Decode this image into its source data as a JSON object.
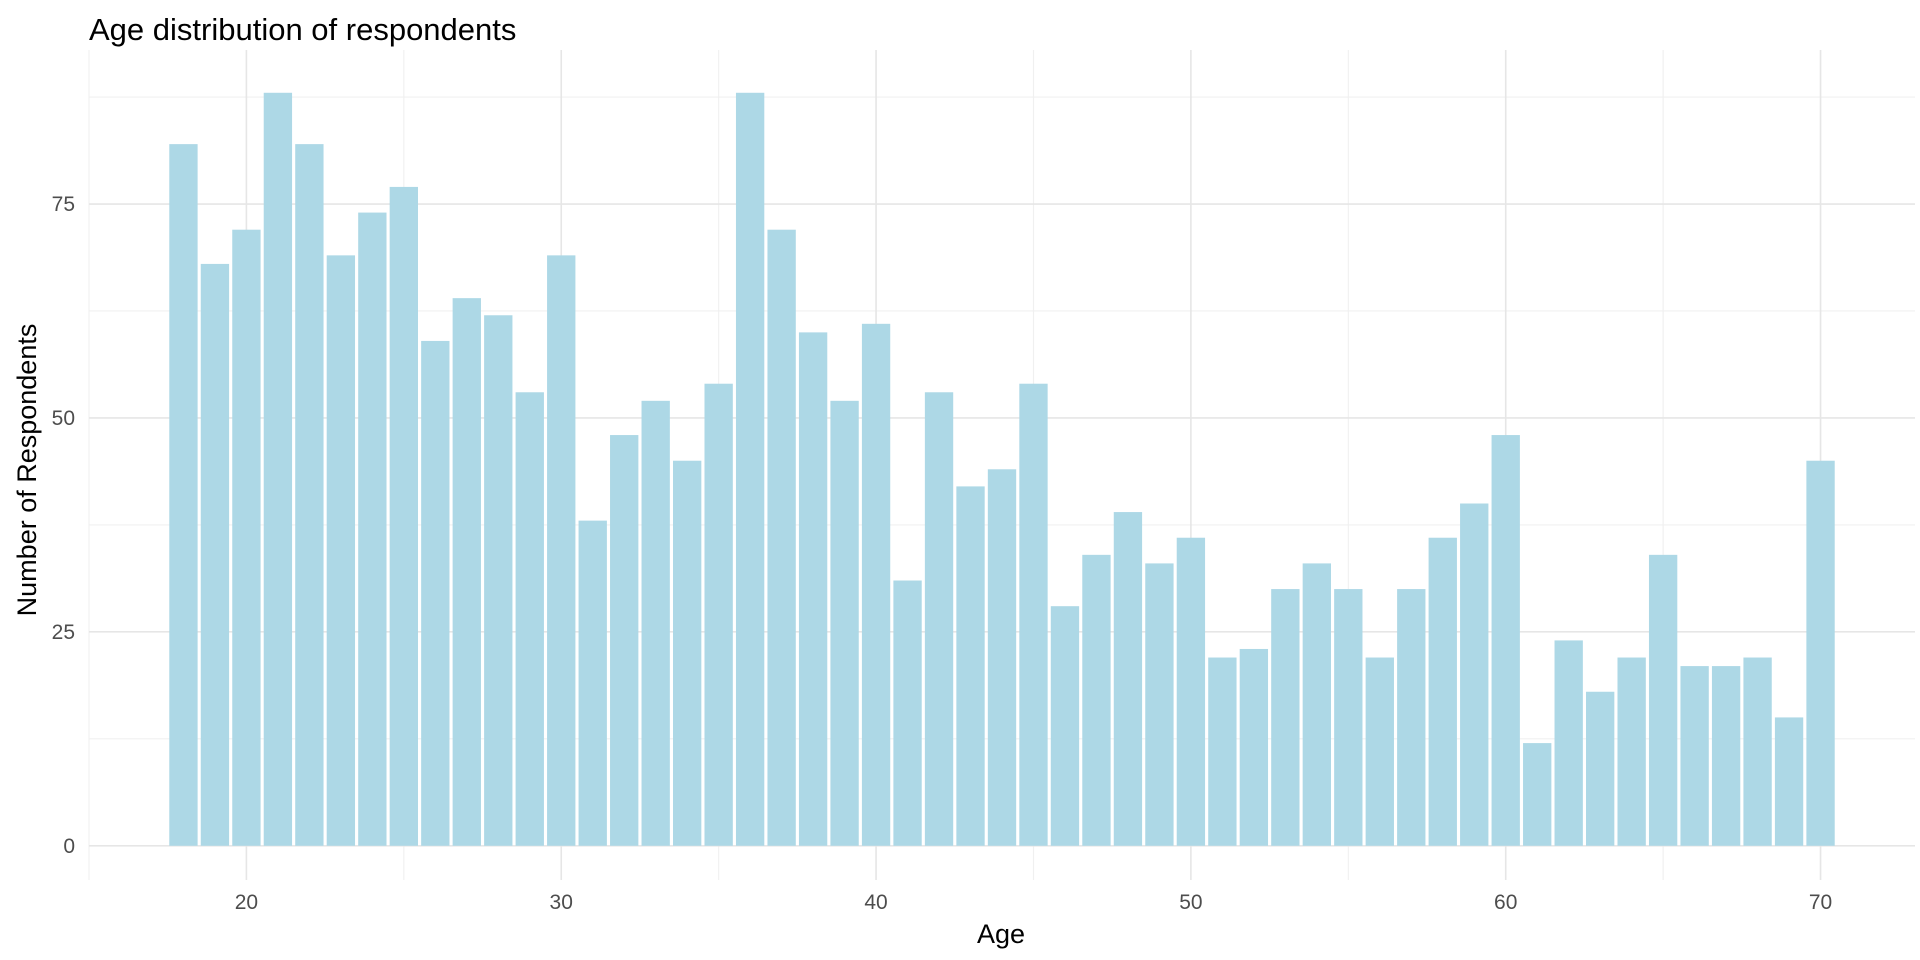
{
  "chart_data": {
    "type": "bar",
    "title": "Age distribution of respondents",
    "xlabel": "Age",
    "ylabel": "Number of Respondents",
    "x": [
      18,
      19,
      20,
      21,
      22,
      23,
      24,
      25,
      26,
      27,
      28,
      29,
      30,
      31,
      32,
      33,
      34,
      35,
      36,
      37,
      38,
      39,
      40,
      41,
      42,
      43,
      44,
      45,
      46,
      47,
      48,
      49,
      50,
      51,
      52,
      53,
      54,
      55,
      56,
      57,
      58,
      59,
      60,
      61,
      62,
      63,
      64,
      65,
      66,
      67,
      68,
      69,
      70
    ],
    "values": [
      82,
      68,
      72,
      88,
      82,
      69,
      74,
      77,
      59,
      64,
      62,
      53,
      69,
      38,
      48,
      52,
      45,
      54,
      88,
      72,
      60,
      52,
      61,
      31,
      53,
      42,
      44,
      54,
      28,
      34,
      39,
      33,
      36,
      22,
      23,
      30,
      33,
      30,
      22,
      30,
      36,
      40,
      48,
      12,
      24,
      18,
      22,
      34,
      21,
      21,
      22,
      15,
      45
    ],
    "x_ticks": [
      20,
      30,
      40,
      50,
      60,
      70
    ],
    "y_ticks": [
      0,
      25,
      50,
      75
    ],
    "xlim": [
      15,
      73
    ],
    "ylim": [
      -4,
      93
    ],
    "bar_color": "#add8e6",
    "grid": true,
    "legend": "none"
  }
}
